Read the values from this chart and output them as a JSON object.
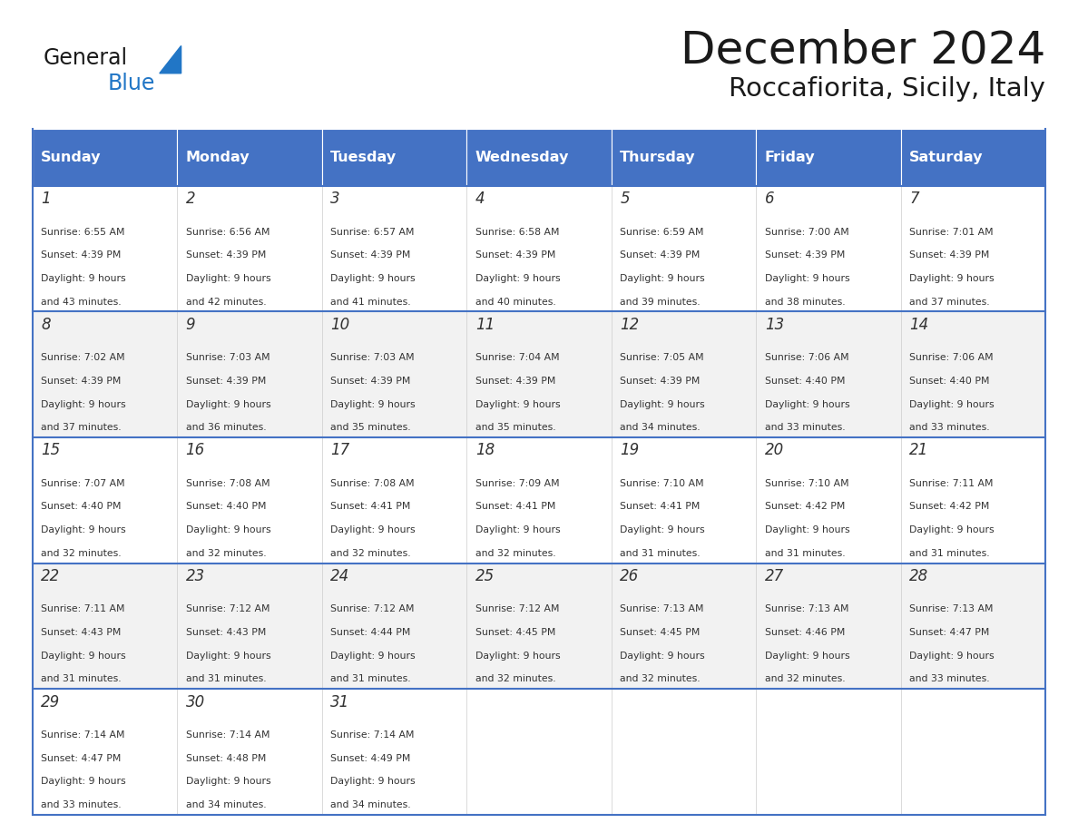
{
  "title": "December 2024",
  "subtitle": "Roccafiorita, Sicily, Italy",
  "header_bg_color": "#4472C4",
  "header_text_color": "#FFFFFF",
  "cell_bg_light": "#FFFFFF",
  "cell_bg_alt": "#F2F2F2",
  "border_color": "#4472C4",
  "day_names": [
    "Sunday",
    "Monday",
    "Tuesday",
    "Wednesday",
    "Thursday",
    "Friday",
    "Saturday"
  ],
  "weeks": [
    [
      {
        "day": 1,
        "sunrise": "6:55 AM",
        "sunset": "4:39 PM",
        "daylight_h": "9 hours",
        "daylight_m": "and 43 minutes."
      },
      {
        "day": 2,
        "sunrise": "6:56 AM",
        "sunset": "4:39 PM",
        "daylight_h": "9 hours",
        "daylight_m": "and 42 minutes."
      },
      {
        "day": 3,
        "sunrise": "6:57 AM",
        "sunset": "4:39 PM",
        "daylight_h": "9 hours",
        "daylight_m": "and 41 minutes."
      },
      {
        "day": 4,
        "sunrise": "6:58 AM",
        "sunset": "4:39 PM",
        "daylight_h": "9 hours",
        "daylight_m": "and 40 minutes."
      },
      {
        "day": 5,
        "sunrise": "6:59 AM",
        "sunset": "4:39 PM",
        "daylight_h": "9 hours",
        "daylight_m": "and 39 minutes."
      },
      {
        "day": 6,
        "sunrise": "7:00 AM",
        "sunset": "4:39 PM",
        "daylight_h": "9 hours",
        "daylight_m": "and 38 minutes."
      },
      {
        "day": 7,
        "sunrise": "7:01 AM",
        "sunset": "4:39 PM",
        "daylight_h": "9 hours",
        "daylight_m": "and 37 minutes."
      }
    ],
    [
      {
        "day": 8,
        "sunrise": "7:02 AM",
        "sunset": "4:39 PM",
        "daylight_h": "9 hours",
        "daylight_m": "and 37 minutes."
      },
      {
        "day": 9,
        "sunrise": "7:03 AM",
        "sunset": "4:39 PM",
        "daylight_h": "9 hours",
        "daylight_m": "and 36 minutes."
      },
      {
        "day": 10,
        "sunrise": "7:03 AM",
        "sunset": "4:39 PM",
        "daylight_h": "9 hours",
        "daylight_m": "and 35 minutes."
      },
      {
        "day": 11,
        "sunrise": "7:04 AM",
        "sunset": "4:39 PM",
        "daylight_h": "9 hours",
        "daylight_m": "and 35 minutes."
      },
      {
        "day": 12,
        "sunrise": "7:05 AM",
        "sunset": "4:39 PM",
        "daylight_h": "9 hours",
        "daylight_m": "and 34 minutes."
      },
      {
        "day": 13,
        "sunrise": "7:06 AM",
        "sunset": "4:40 PM",
        "daylight_h": "9 hours",
        "daylight_m": "and 33 minutes."
      },
      {
        "day": 14,
        "sunrise": "7:06 AM",
        "sunset": "4:40 PM",
        "daylight_h": "9 hours",
        "daylight_m": "and 33 minutes."
      }
    ],
    [
      {
        "day": 15,
        "sunrise": "7:07 AM",
        "sunset": "4:40 PM",
        "daylight_h": "9 hours",
        "daylight_m": "and 32 minutes."
      },
      {
        "day": 16,
        "sunrise": "7:08 AM",
        "sunset": "4:40 PM",
        "daylight_h": "9 hours",
        "daylight_m": "and 32 minutes."
      },
      {
        "day": 17,
        "sunrise": "7:08 AM",
        "sunset": "4:41 PM",
        "daylight_h": "9 hours",
        "daylight_m": "and 32 minutes."
      },
      {
        "day": 18,
        "sunrise": "7:09 AM",
        "sunset": "4:41 PM",
        "daylight_h": "9 hours",
        "daylight_m": "and 32 minutes."
      },
      {
        "day": 19,
        "sunrise": "7:10 AM",
        "sunset": "4:41 PM",
        "daylight_h": "9 hours",
        "daylight_m": "and 31 minutes."
      },
      {
        "day": 20,
        "sunrise": "7:10 AM",
        "sunset": "4:42 PM",
        "daylight_h": "9 hours",
        "daylight_m": "and 31 minutes."
      },
      {
        "day": 21,
        "sunrise": "7:11 AM",
        "sunset": "4:42 PM",
        "daylight_h": "9 hours",
        "daylight_m": "and 31 minutes."
      }
    ],
    [
      {
        "day": 22,
        "sunrise": "7:11 AM",
        "sunset": "4:43 PM",
        "daylight_h": "9 hours",
        "daylight_m": "and 31 minutes."
      },
      {
        "day": 23,
        "sunrise": "7:12 AM",
        "sunset": "4:43 PM",
        "daylight_h": "9 hours",
        "daylight_m": "and 31 minutes."
      },
      {
        "day": 24,
        "sunrise": "7:12 AM",
        "sunset": "4:44 PM",
        "daylight_h": "9 hours",
        "daylight_m": "and 31 minutes."
      },
      {
        "day": 25,
        "sunrise": "7:12 AM",
        "sunset": "4:45 PM",
        "daylight_h": "9 hours",
        "daylight_m": "and 32 minutes."
      },
      {
        "day": 26,
        "sunrise": "7:13 AM",
        "sunset": "4:45 PM",
        "daylight_h": "9 hours",
        "daylight_m": "and 32 minutes."
      },
      {
        "day": 27,
        "sunrise": "7:13 AM",
        "sunset": "4:46 PM",
        "daylight_h": "9 hours",
        "daylight_m": "and 32 minutes."
      },
      {
        "day": 28,
        "sunrise": "7:13 AM",
        "sunset": "4:47 PM",
        "daylight_h": "9 hours",
        "daylight_m": "and 33 minutes."
      }
    ],
    [
      {
        "day": 29,
        "sunrise": "7:14 AM",
        "sunset": "4:47 PM",
        "daylight_h": "9 hours",
        "daylight_m": "and 33 minutes."
      },
      {
        "day": 30,
        "sunrise": "7:14 AM",
        "sunset": "4:48 PM",
        "daylight_h": "9 hours",
        "daylight_m": "and 34 minutes."
      },
      {
        "day": 31,
        "sunrise": "7:14 AM",
        "sunset": "4:49 PM",
        "daylight_h": "9 hours",
        "daylight_m": "and 34 minutes."
      },
      null,
      null,
      null,
      null
    ]
  ],
  "logo_text_general": "General",
  "logo_text_blue": "Blue",
  "logo_general_color": "#1a1a1a",
  "logo_blue_color": "#2176C6",
  "logo_triangle_color": "#2176C6"
}
